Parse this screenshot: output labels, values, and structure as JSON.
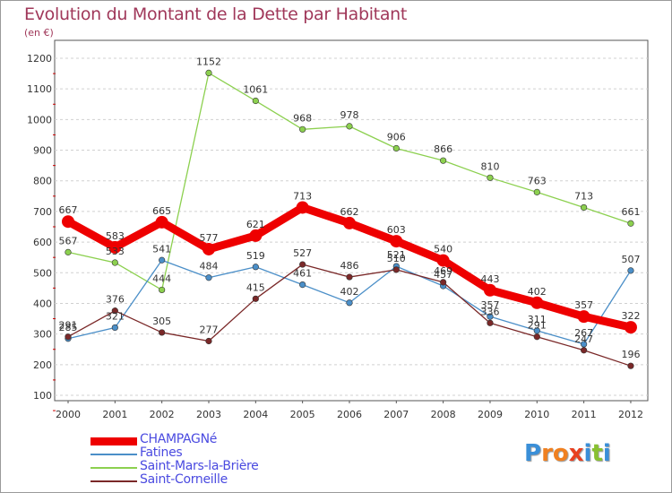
{
  "chart_data": {
    "type": "line",
    "title": "Evolution du Montant de la Dette par Habitant",
    "subtitle": "(en €)",
    "xlabel": "",
    "ylabel": "",
    "categories": [
      "2000",
      "2001",
      "2002",
      "2003",
      "2004",
      "2005",
      "2006",
      "2007",
      "2008",
      "2009",
      "2010",
      "2011",
      "2012"
    ],
    "yticks": [
      "100",
      "200",
      "300",
      "400",
      "500",
      "600",
      "700",
      "800",
      "900",
      "1000",
      "1100",
      "1200"
    ],
    "ylim": [
      100,
      1200
    ],
    "grid": "horizontal-dashed",
    "legend_position": "bottom-left",
    "series": [
      {
        "name": "CHAMPAGNé",
        "color": "#ee0000",
        "values": [
          667,
          583,
          665,
          577,
          621,
          713,
          662,
          603,
          540,
          443,
          402,
          357,
          322
        ],
        "labels": [
          "667",
          "583",
          "665",
          "577",
          "621",
          "713",
          "662",
          "603",
          "540",
          "443",
          "402",
          "357",
          "322"
        ]
      },
      {
        "name": "Fatines",
        "color": "#4b8fc8",
        "values": [
          285,
          321,
          541,
          484,
          519,
          461,
          402,
          521,
          457,
          357,
          311,
          267,
          507
        ],
        "labels": [
          "285",
          "321",
          "541",
          "484",
          "519",
          "461",
          "402",
          "521",
          "457",
          "357",
          "311",
          "267",
          "507"
        ]
      },
      {
        "name": "Saint-Mars-la-Brière",
        "color": "#8cd04f",
        "values": [
          567,
          533,
          444,
          1152,
          1061,
          968,
          978,
          906,
          866,
          810,
          763,
          713,
          661
        ],
        "labels": [
          "567",
          "533",
          "444",
          "1152",
          "1061",
          "968",
          "978",
          "906",
          "866",
          "810",
          "763",
          "713",
          "661"
        ]
      },
      {
        "name": "Saint-Corneille",
        "color": "#7a2828",
        "values": [
          291,
          376,
          305,
          277,
          415,
          527,
          486,
          510,
          469,
          336,
          291,
          247,
          196
        ],
        "labels": [
          "291",
          "376",
          "305",
          "277",
          "415",
          "527",
          "486",
          "510",
          "469",
          "336",
          "291",
          "247",
          "196"
        ]
      }
    ]
  },
  "logo": {
    "letters": [
      {
        "ch": "P",
        "color": "#3a8fd8"
      },
      {
        "ch": "r",
        "color": "#f08020"
      },
      {
        "ch": "o",
        "color": "#f08020"
      },
      {
        "ch": "x",
        "color": "#e84020"
      },
      {
        "ch": "i",
        "color": "#3a8fd8"
      },
      {
        "ch": "t",
        "color": "#88c030"
      },
      {
        "ch": "i",
        "color": "#3a8fd8"
      }
    ]
  }
}
